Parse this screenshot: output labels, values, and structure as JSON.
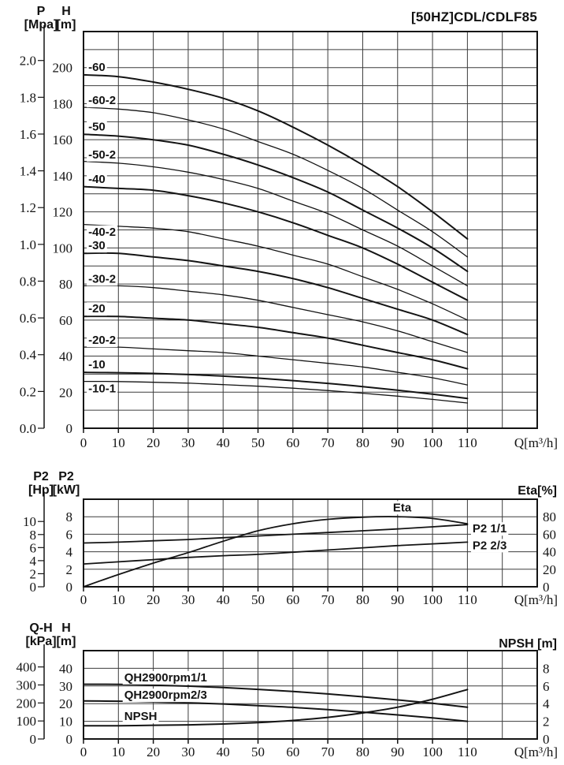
{
  "title": "[50HZ]CDL/CDLF85",
  "x_axis": {
    "label": "Q[m³/h]",
    "ticks": [
      0,
      10,
      20,
      30,
      40,
      50,
      60,
      70,
      80,
      90,
      100,
      110
    ],
    "max": 130,
    "grid_step": 10
  },
  "chart_data": [
    {
      "type": "line",
      "name": "head-flow-curves",
      "left_axis": {
        "title": "H",
        "unit": "[m]",
        "ticks": [
          0,
          20,
          40,
          60,
          80,
          100,
          120,
          140,
          160,
          180,
          200
        ],
        "max": 220,
        "grid_step": 10
      },
      "secondary_left_axis": {
        "title": "P",
        "unit": "[Mpa]",
        "tick_labels": [
          "0.0",
          "0.2",
          "0.4",
          "0.6",
          "0.8",
          "1.0",
          "1.2",
          "1.4",
          "1.6",
          "1.8",
          "2.0"
        ],
        "to_left_factor": 101.97
      },
      "x": [
        0,
        10,
        20,
        30,
        40,
        50,
        60,
        70,
        80,
        90,
        100,
        110
      ],
      "series": [
        {
          "name": "-60",
          "values": [
            196,
            195,
            192,
            188,
            183,
            176,
            167,
            157,
            146,
            134,
            120,
            105
          ],
          "width": 2,
          "label": {
            "q": 0.7,
            "dy": -5
          }
        },
        {
          "name": "-60-2",
          "values": [
            178,
            177,
            175,
            171,
            166,
            159,
            152,
            143,
            133,
            121,
            109,
            95
          ],
          "width": 1.3,
          "label": {
            "q": 0.7,
            "dy": -4
          }
        },
        {
          "name": "-50",
          "values": [
            163,
            162,
            160,
            157,
            152,
            146,
            139,
            131,
            121,
            111,
            100,
            87
          ],
          "width": 2,
          "label": {
            "q": 0.7,
            "dy": -5
          }
        },
        {
          "name": "-50-2",
          "values": [
            148,
            147,
            145,
            142,
            138,
            133,
            126,
            119,
            110,
            101,
            90,
            79
          ],
          "width": 1.3,
          "label": {
            "q": 0.7,
            "dy": -4
          }
        },
        {
          "name": "-40",
          "values": [
            134,
            133,
            132,
            129,
            125,
            120,
            114,
            107,
            100,
            91,
            81,
            71
          ],
          "width": 2,
          "label": {
            "q": 0.7,
            "dy": -5
          }
        },
        {
          "name": "-40-2",
          "values": [
            113,
            112,
            111,
            109,
            105,
            101,
            96,
            91,
            84,
            77,
            69,
            60
          ],
          "width": 1.3,
          "label": {
            "q": 0.7,
            "dy": 14
          }
        },
        {
          "name": "-30",
          "values": [
            97,
            97,
            95,
            93,
            90,
            87,
            83,
            78,
            72,
            66,
            60,
            52
          ],
          "width": 2,
          "label": {
            "q": 0.7,
            "dy": -5
          }
        },
        {
          "name": "-30-2",
          "values": [
            79,
            79,
            78,
            76,
            74,
            71,
            67,
            63,
            59,
            54,
            48,
            42
          ],
          "width": 1.3,
          "label": {
            "q": 0.7,
            "dy": -4
          }
        },
        {
          "name": "-20",
          "values": [
            62,
            62,
            61,
            60,
            58,
            56,
            53,
            50,
            46,
            42,
            38,
            33
          ],
          "width": 2,
          "label": {
            "q": 0.7,
            "dy": -5
          }
        },
        {
          "name": "-20-2",
          "values": [
            45,
            45,
            44,
            43,
            42,
            40,
            38,
            36,
            34,
            31,
            28,
            24
          ],
          "width": 1.3,
          "label": {
            "q": 0.7,
            "dy": -4
          }
        },
        {
          "name": "-10",
          "values": [
            31,
            30.8,
            30.4,
            29.8,
            28.9,
            27.8,
            26.4,
            24.9,
            23.1,
            21.1,
            18.9,
            16.5
          ],
          "width": 2,
          "label": {
            "q": 0.7,
            "dy": -5
          }
        },
        {
          "name": "-10-1",
          "values": [
            26,
            25.9,
            25.5,
            25,
            24.2,
            23.3,
            22.2,
            20.9,
            19.4,
            17.8,
            16,
            14
          ],
          "width": 1.3,
          "label": {
            "q": 0.7,
            "dy": 14
          }
        }
      ]
    },
    {
      "type": "line",
      "name": "power-efficiency-curves",
      "left_axis": {
        "title": "P2",
        "unit": "[kW]",
        "ticks": [
          0,
          2,
          4,
          6,
          8
        ],
        "max": 10,
        "grid_step": 2
      },
      "secondary_left_axis": {
        "title": "P2",
        "unit": "[Hp]",
        "tick_labels": [
          "0",
          "2",
          "4",
          "6",
          "8",
          "10"
        ],
        "to_left_factor": 0.7457
      },
      "right_axis": {
        "title": "Eta[%]",
        "ticks": [
          0,
          20,
          40,
          60,
          80
        ],
        "max": 100
      },
      "x": [
        0,
        10,
        20,
        30,
        40,
        50,
        60,
        70,
        80,
        90,
        100,
        110
      ],
      "series": [
        {
          "name": "Eta",
          "axis": "right",
          "values": [
            0,
            14,
            27,
            39,
            52,
            64,
            72,
            77,
            79.5,
            80,
            78,
            72
          ],
          "width": 1.8,
          "label": {
            "q": 88,
            "dy": -7
          }
        },
        {
          "name": "P2 1/1",
          "values": [
            5,
            5.1,
            5.25,
            5.4,
            5.6,
            5.8,
            6,
            6.2,
            6.4,
            6.6,
            6.85,
            7.1
          ],
          "width": 1.8,
          "label": {
            "q": 110.8,
            "dy": 10
          }
        },
        {
          "name": "P2 2/3",
          "values": [
            2.6,
            2.85,
            3.1,
            3.35,
            3.55,
            3.7,
            3.95,
            4.2,
            4.45,
            4.7,
            4.9,
            5.1
          ],
          "width": 1.8,
          "label": {
            "q": 110.8,
            "dy": 9
          }
        }
      ]
    },
    {
      "type": "line",
      "name": "single-stage-npsh-curves",
      "left_axis": {
        "title": "H",
        "unit": "[m]",
        "ticks": [
          0,
          10,
          20,
          30,
          40
        ],
        "max": 50,
        "grid_step": 10
      },
      "secondary_left_axis": {
        "title": "Q-H",
        "unit": "[kPa]",
        "tick_labels": [
          "0",
          "100",
          "200",
          "300",
          "400"
        ],
        "to_left_factor": 0.10194
      },
      "right_axis": {
        "title": "NPSH [m]",
        "ticks": [
          0,
          2,
          4,
          6,
          8
        ],
        "max": 10
      },
      "x": [
        0,
        10,
        20,
        30,
        40,
        50,
        60,
        70,
        80,
        90,
        100,
        110
      ],
      "series": [
        {
          "name": "QH2900rpm1/1",
          "values": [
            31,
            30.9,
            30.5,
            29.9,
            29.1,
            28.1,
            26.9,
            25.5,
            23.9,
            22.1,
            20.2,
            18
          ],
          "width": 2,
          "label": {
            "q": 11,
            "dy": -4
          }
        },
        {
          "name": "QH2900rpm2/3",
          "values": [
            21.5,
            21.4,
            21,
            20.5,
            19.8,
            18.9,
            17.9,
            16.6,
            15.2,
            13.6,
            11.9,
            10
          ],
          "width": 2,
          "label": {
            "q": 11,
            "dy": -3
          }
        },
        {
          "name": "NPSH",
          "axis": "right",
          "values": [
            1.5,
            1.5,
            1.55,
            1.6,
            1.7,
            1.85,
            2.1,
            2.45,
            2.95,
            3.6,
            4.5,
            5.6
          ],
          "width": 2,
          "label": {
            "q": 11,
            "dy": -7
          }
        }
      ]
    }
  ],
  "colors": {
    "ink": "#141414",
    "grid": "#3c3c3c",
    "background": "#ffffff"
  }
}
